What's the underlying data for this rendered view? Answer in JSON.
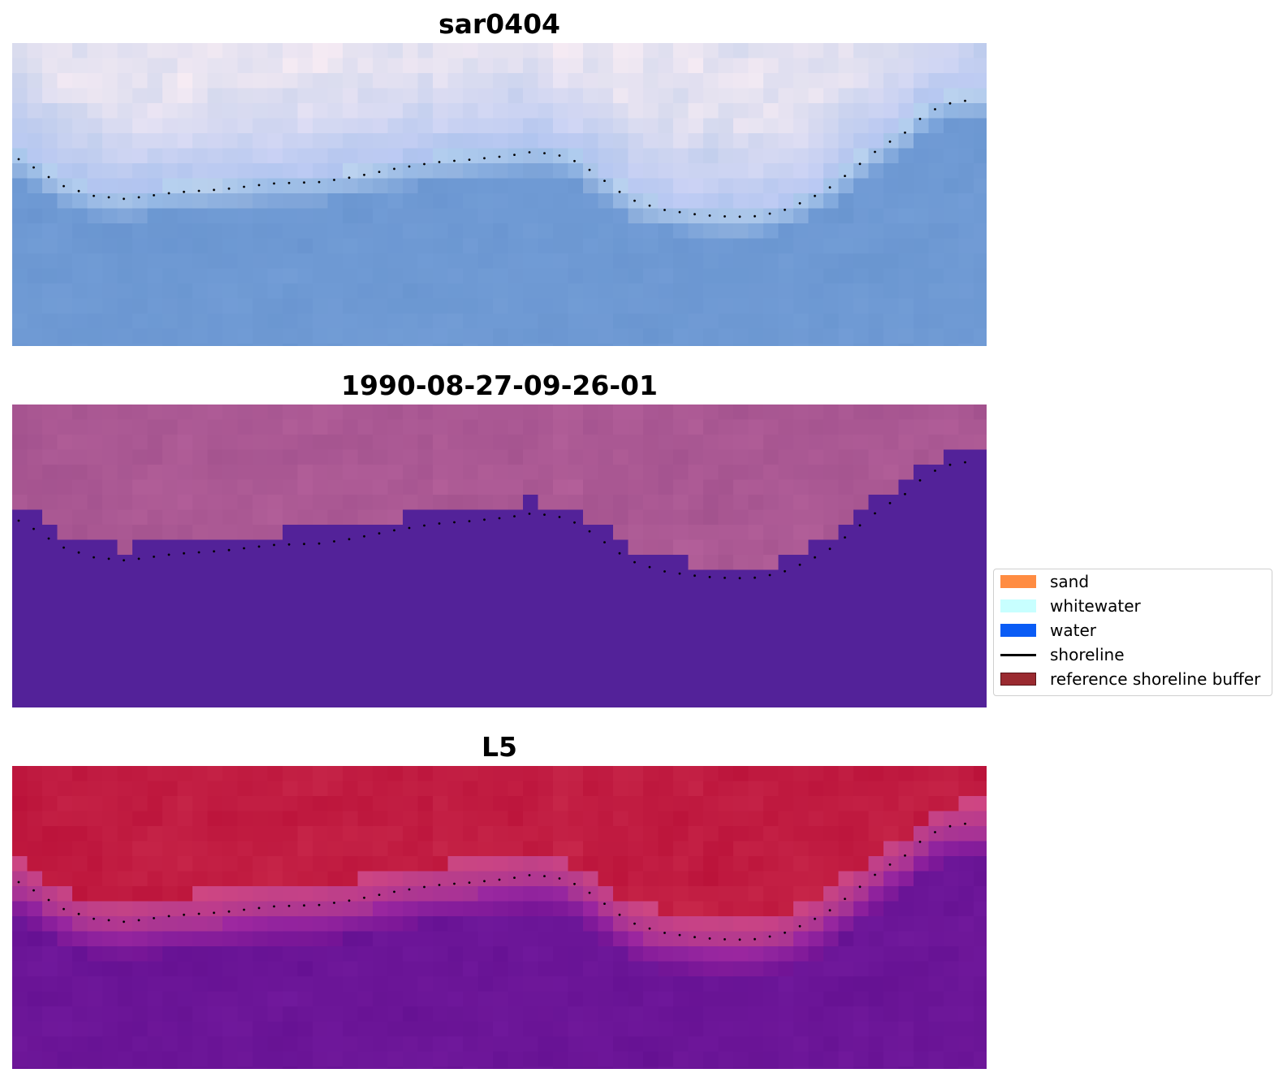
{
  "panels": [
    {
      "title": "sar0404",
      "style": "sar"
    },
    {
      "title": "1990-08-27-09-26-01",
      "style": "classified"
    },
    {
      "title": "L5",
      "style": "index"
    }
  ],
  "legend": {
    "items": [
      {
        "label": "sand",
        "color": "#ff8c42",
        "kind": "patch"
      },
      {
        "label": "whitewater",
        "color": "#c8ffff",
        "kind": "patch"
      },
      {
        "label": "water",
        "color": "#0a5cf5",
        "kind": "patch"
      },
      {
        "label": "shoreline",
        "color": "#000000",
        "kind": "line"
      },
      {
        "label": "reference shoreline buffer",
        "color": "#9a2a30",
        "kind": "patch"
      }
    ]
  },
  "colors": {
    "sar_water": "#6f97d1",
    "classified_land": "#a3558f",
    "classified_water": "#532299",
    "index_land": "#c3143d",
    "index_water": "#6c1496",
    "shoreline": "#000000"
  }
}
